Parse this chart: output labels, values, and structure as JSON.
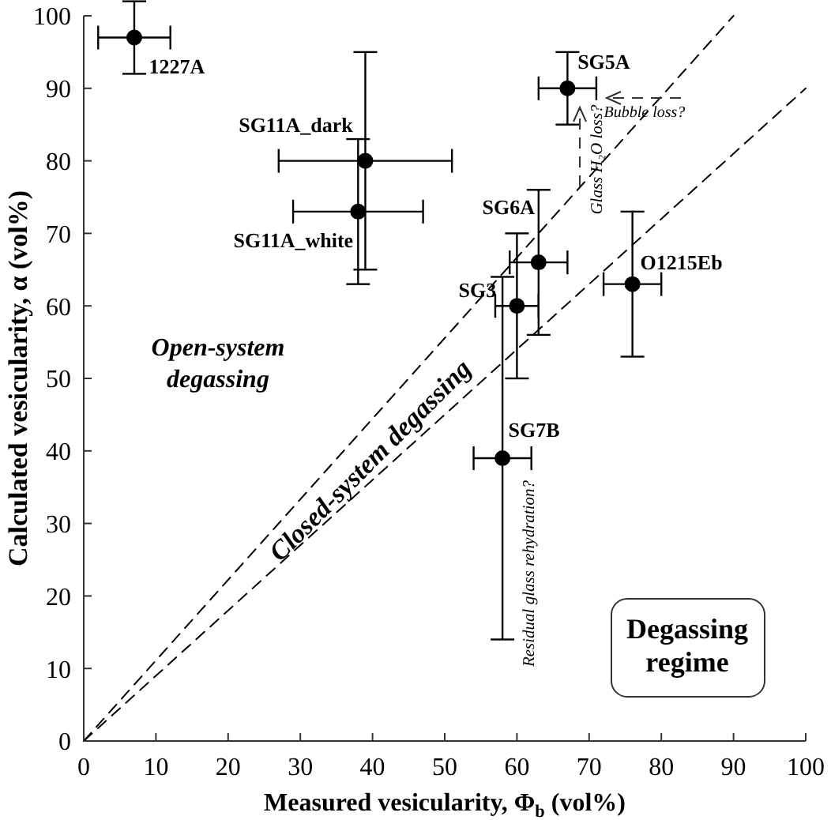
{
  "chart_data": {
    "type": "scatter",
    "xlabel": "Measured vesicularity, Φ$_{b}$ (vol%)",
    "ylabel": "Calculated vesicularity, α (vol%)",
    "xlim": [
      0,
      100
    ],
    "ylim": [
      0,
      100
    ],
    "xticks": [
      0,
      10,
      20,
      30,
      40,
      50,
      60,
      70,
      80,
      90,
      100
    ],
    "yticks": [
      0,
      10,
      20,
      30,
      40,
      50,
      60,
      70,
      80,
      90,
      100
    ],
    "marker": "circle",
    "series": [
      {
        "name": "1227A",
        "color": "#000000",
        "x": [
          7
        ],
        "values": [
          97
        ],
        "errors": [
          5
        ],
        "xerrors": [
          5
        ]
      },
      {
        "name": "SG11A_dark",
        "color": "#000000",
        "x": [
          39
        ],
        "values": [
          80
        ],
        "errors": [
          15
        ],
        "xerrors": [
          12
        ]
      },
      {
        "name": "SG11A_white",
        "color": "#000000",
        "x": [
          38
        ],
        "values": [
          73
        ],
        "errors": [
          10
        ],
        "xerrors": [
          9
        ]
      },
      {
        "name": "SG5A",
        "color": "#000000",
        "x": [
          67
        ],
        "values": [
          90
        ],
        "errors": [
          5
        ],
        "xerrors": [
          4
        ]
      },
      {
        "name": "SG6A",
        "color": "#000000",
        "x": [
          63
        ],
        "values": [
          66
        ],
        "errors": [
          10
        ],
        "xerrors": [
          4
        ]
      },
      {
        "name": "SG3",
        "color": "#000000",
        "x": [
          60
        ],
        "values": [
          60
        ],
        "errors": [
          10
        ],
        "xerrors": [
          3
        ]
      },
      {
        "name": "O1215Eb",
        "color": "#000000",
        "x": [
          76
        ],
        "values": [
          63
        ],
        "errors": [
          10
        ],
        "xerrors": [
          4
        ]
      },
      {
        "name": "SG7B",
        "color": "#000000",
        "x": [
          58
        ],
        "values": [
          39
        ],
        "errors": [
          25
        ],
        "xerrors": [
          4
        ]
      },
      {
        "type": "line",
        "color": "#000000",
        "x": [
          0,
          90
        ],
        "values": [
          0,
          100
        ],
        "line_style": "dashed",
        "marker": "none"
      },
      {
        "type": "line",
        "color": "#000000",
        "x": [
          0,
          100
        ],
        "values": [
          0,
          90
        ],
        "line_style": "dashed",
        "marker": "none"
      }
    ],
    "annotations": [
      "Open-system degassing",
      "Closed-system degassing",
      "Glass H₂O loss?",
      "Bubble loss?",
      "Residual glass rehydration?",
      "Degassing regime"
    ]
  }
}
